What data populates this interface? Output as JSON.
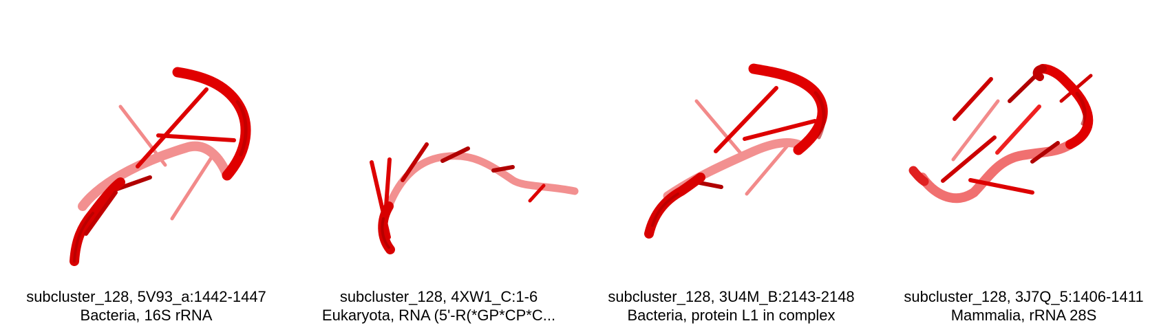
{
  "colors": {
    "backbone": "#e00000",
    "backbone_dark": "#b80000",
    "backbone_faded": "#f08a8a",
    "base": "#d40000"
  },
  "panels": [
    {
      "line1": "subcluster_128, 5V93_a:1442-1447",
      "line2": "Bacteria, 16S rRNA",
      "image": "rna-backbone-structure"
    },
    {
      "line1": "subcluster_128, 4XW1_C:1-6",
      "line2": "Eukaryota, RNA (5'-R(*GP*CP*C...",
      "image": "rna-backbone-structure"
    },
    {
      "line1": "subcluster_128, 3U4M_B:2143-2148",
      "line2": "Bacteria, protein L1 in complex",
      "image": "rna-backbone-structure"
    },
    {
      "line1": "subcluster_128, 3J7Q_5:1406-1411",
      "line2": "Mammalia, rRNA 28S",
      "image": "rna-backbone-structure"
    }
  ]
}
